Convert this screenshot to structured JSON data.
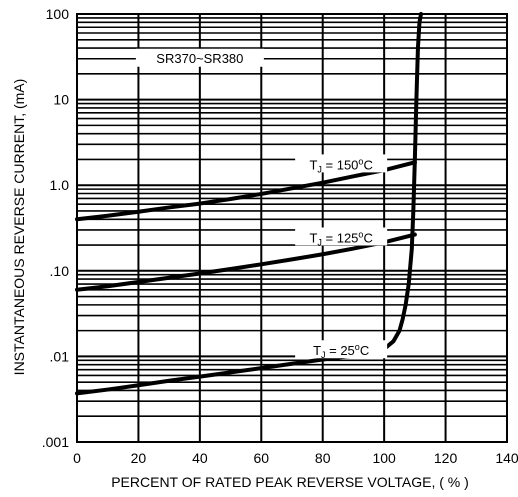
{
  "chart_data": {
    "type": "line",
    "xlabel": "PERCENT OF RATED PEAK REVERSE VOLTAGE, ( % )",
    "ylabel": "INSTANTANEOUS REVERSE CURRENT, (mA)",
    "xlim": [
      0,
      140
    ],
    "ylim": [
      0.001,
      100
    ],
    "y_scale": "log",
    "grid": true,
    "x_ticks": [
      0,
      20,
      40,
      60,
      80,
      100,
      120,
      140
    ],
    "x_tick_labels": [
      "0",
      "20",
      "40",
      "60",
      "80",
      "100",
      "120",
      "140"
    ],
    "y_ticks": [
      0.001,
      0.01,
      0.1,
      1,
      10,
      100
    ],
    "y_tick_labels": [
      ".001",
      ".01",
      ".10",
      "1.0",
      "10",
      "100"
    ],
    "annotations": [
      "SR370~SR380"
    ],
    "series": [
      {
        "name": "TJ = 150°C",
        "name_parts": {
          "t": "T",
          "j": "J",
          "eq": " = 150",
          "deg": "o",
          "c": "C"
        },
        "x": [
          0,
          10,
          20,
          30,
          40,
          50,
          60,
          70,
          80,
          90,
          100,
          110
        ],
        "y": [
          0.4,
          0.44,
          0.49,
          0.55,
          0.61,
          0.69,
          0.79,
          0.92,
          1.07,
          1.27,
          1.5,
          1.85
        ]
      },
      {
        "name": "TJ = 125°C",
        "name_parts": {
          "t": "T",
          "j": "J",
          "eq": " = 125",
          "deg": "o",
          "c": "C"
        },
        "x": [
          0,
          10,
          20,
          30,
          40,
          50,
          60,
          70,
          80,
          90,
          100,
          110
        ],
        "y": [
          0.06,
          0.066,
          0.074,
          0.083,
          0.093,
          0.105,
          0.119,
          0.136,
          0.156,
          0.182,
          0.215,
          0.265
        ]
      },
      {
        "name": "TJ = 25°C",
        "name_parts": {
          "t": "T",
          "j": "J",
          "eq": " = 25",
          "deg": "o",
          "c": "C"
        },
        "x": [
          0,
          10,
          20,
          30,
          40,
          50,
          60,
          70,
          80,
          90,
          95,
          100,
          103,
          105,
          106,
          107,
          108,
          109,
          109.5,
          110,
          110.5,
          111,
          111.5,
          112
        ],
        "y": [
          0.0037,
          0.0041,
          0.0046,
          0.0052,
          0.0058,
          0.0065,
          0.0073,
          0.0082,
          0.0092,
          0.0102,
          0.0108,
          0.0122,
          0.015,
          0.02,
          0.027,
          0.04,
          0.07,
          0.18,
          0.5,
          2,
          10,
          40,
          80,
          100
        ]
      }
    ]
  }
}
